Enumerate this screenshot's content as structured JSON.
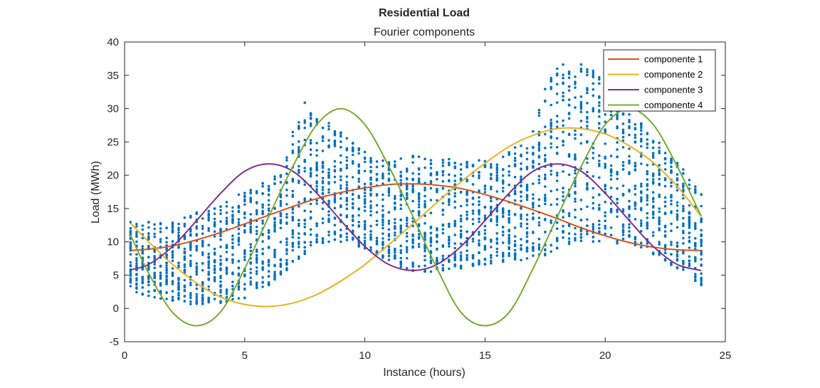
{
  "chart_data": {
    "type": "scatter",
    "title": "Residential Load",
    "subtitle": "Fourier components",
    "xlabel": "Instance (hours)",
    "ylabel": "Load (MWh)",
    "xlim": [
      0,
      25
    ],
    "ylim": [
      -5,
      40
    ],
    "xticks": [
      0,
      5,
      10,
      15,
      20,
      25
    ],
    "yticks": [
      -5,
      0,
      5,
      10,
      15,
      20,
      25,
      30,
      35,
      40
    ],
    "grid": false,
    "legend_position": "top-right",
    "scatter_color": "#0072BD",
    "scatter_x_range": [
      0.25,
      24
    ],
    "scatter_x_step": 0.25,
    "scatter_envelope": {
      "x": [
        0.25,
        2,
        3,
        4,
        5,
        6,
        6.5,
        7,
        7.5,
        8,
        8.5,
        9,
        10,
        11,
        12,
        13,
        14,
        15,
        16,
        17,
        17.5,
        18,
        19,
        20,
        21,
        22,
        23,
        24
      ],
      "y_min": [
        2.5,
        1.0,
        0.5,
        0.8,
        1.5,
        3.5,
        5.0,
        6.5,
        8.0,
        9.5,
        10.0,
        10.0,
        9.0,
        7.0,
        5.5,
        5.5,
        6.0,
        6.5,
        7.0,
        7.5,
        8.0,
        9.0,
        10.0,
        10.0,
        9.5,
        8.0,
        6.0,
        3.5
      ],
      "y_max": [
        13.0,
        13.0,
        14.5,
        16.0,
        17.5,
        20.0,
        22.0,
        27.0,
        31.0,
        29.0,
        29.0,
        27.0,
        24.0,
        22.0,
        23.0,
        22.5,
        22.5,
        22.5,
        23.5,
        27.0,
        33.0,
        36.5,
        37.0,
        35.0,
        30.5,
        26.0,
        22.0,
        17.5
      ]
    },
    "series": [
      {
        "name": "componente 1",
        "color": "#D95319",
        "x": [
          0.25,
          1,
          2,
          3,
          4,
          5,
          6,
          7,
          8,
          9,
          10,
          11,
          12,
          13,
          14,
          15,
          16,
          17,
          18,
          19,
          20,
          21,
          22,
          23,
          24
        ],
        "y": [
          8.7,
          8.9,
          9.4,
          10.3,
          11.4,
          12.7,
          14.0,
          15.3,
          16.5,
          17.4,
          18.1,
          18.6,
          18.7,
          18.5,
          18.0,
          17.1,
          16.0,
          14.8,
          13.5,
          12.1,
          10.9,
          9.9,
          9.2,
          8.8,
          8.7
        ]
      },
      {
        "name": "componente 2",
        "color": "#EDB120",
        "x": [
          0.25,
          1,
          2,
          3,
          4,
          5,
          6,
          7,
          8,
          9,
          10,
          11,
          12,
          13,
          14,
          15,
          16,
          17,
          18,
          19,
          20,
          21,
          22,
          23,
          24
        ],
        "y": [
          12.8,
          10.0,
          6.6,
          3.8,
          1.7,
          0.6,
          0.3,
          0.8,
          2.1,
          4.1,
          6.6,
          9.6,
          12.7,
          15.9,
          19.0,
          21.8,
          24.3,
          26.0,
          27.0,
          27.0,
          26.2,
          24.4,
          21.9,
          18.3,
          13.8
        ]
      },
      {
        "name": "componente 3",
        "color": "#7E2F8E",
        "x": [
          0.25,
          1,
          2,
          3,
          4,
          5,
          6,
          7,
          8,
          9,
          10,
          11,
          12,
          13,
          14,
          15,
          16,
          17,
          18,
          19,
          20,
          21,
          22,
          23,
          24
        ],
        "y": [
          5.8,
          6.6,
          9.3,
          13.2,
          17.3,
          20.6,
          21.7,
          20.6,
          17.3,
          13.2,
          9.3,
          6.6,
          5.7,
          6.6,
          9.3,
          13.2,
          17.3,
          20.6,
          21.7,
          20.6,
          17.3,
          13.2,
          9.3,
          6.6,
          5.7
        ]
      },
      {
        "name": "componente 4",
        "color": "#77AC30",
        "x": [
          0.25,
          1,
          2,
          3,
          4,
          5,
          6,
          7,
          8,
          9,
          10,
          11,
          12,
          13,
          14,
          15,
          16,
          17,
          18,
          19,
          20,
          21,
          22,
          23,
          24
        ],
        "y": [
          11.0,
          5.3,
          -0.6,
          -2.6,
          -0.5,
          6.0,
          13.8,
          21.3,
          27.6,
          30.0,
          27.6,
          21.3,
          13.8,
          6.0,
          -0.6,
          -2.6,
          -0.6,
          6.0,
          13.7,
          21.3,
          27.6,
          30.0,
          27.6,
          21.3,
          13.8
        ]
      }
    ]
  }
}
